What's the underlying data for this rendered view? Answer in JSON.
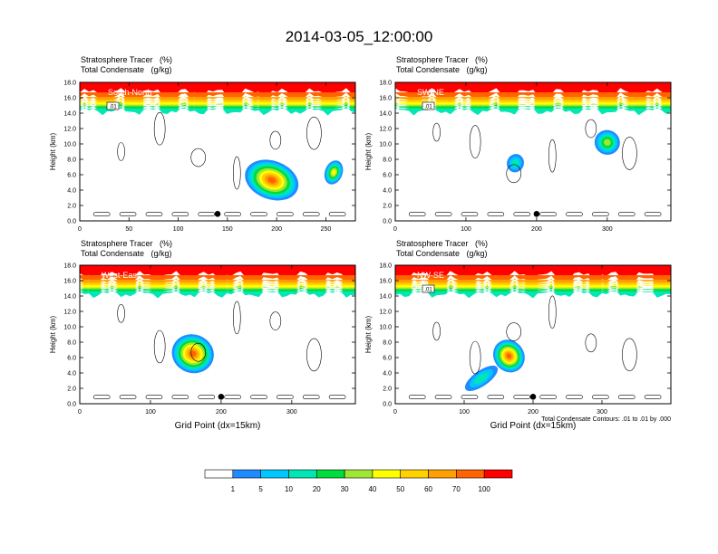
{
  "title": "2014-03-05_12:00:00",
  "header": {
    "line1": "Stratosphere Tracer   (%)",
    "line2": "Total Condensate   (g/kg)"
  },
  "ylabel": "Height (km)",
  "xlabel": "Grid Point (dx=15km)",
  "contour_note": "Total Condensate Contours: .01 to .01 by .000",
  "colors": [
    "#ffffff",
    "#1e8cff",
    "#00c8ff",
    "#00e6b4",
    "#00dc3c",
    "#a0e632",
    "#ffff00",
    "#ffd200",
    "#ffa000",
    "#ff6400",
    "#ff0000"
  ],
  "colorbar_labels": [
    "1",
    "5",
    "10",
    "20",
    "30",
    "40",
    "50",
    "60",
    "70",
    "100"
  ],
  "chart_data": [
    {
      "type": "heatmap",
      "panel": "South-North",
      "x_ticks": [
        "0",
        "50",
        "100",
        "150",
        "200",
        "250"
      ],
      "xlim": [
        0,
        280
      ],
      "y_ticks": [
        "0.0",
        "2.0",
        "4.0",
        "6.0",
        "8.0",
        "10.0",
        "12.0",
        "14.0",
        "16.0",
        "18.0"
      ],
      "ylim": [
        0,
        18
      ],
      "contour_label": ".01",
      "blobs": [
        {
          "x": 195,
          "y": 5.3,
          "rx": 28,
          "ry": 2.5,
          "v": 70
        },
        {
          "x": 258,
          "y": 6.3,
          "rx": 9,
          "ry": 1.6,
          "v": 40
        }
      ],
      "marker_x": 140
    },
    {
      "type": "heatmap",
      "panel": "SW-NE",
      "x_ticks": [
        "0",
        "100",
        "200",
        "300"
      ],
      "xlim": [
        0,
        390
      ],
      "y_ticks": [
        "0.0",
        "2.0",
        "4.0",
        "6.0",
        "8.0",
        "10.0",
        "12.0",
        "14.0",
        "16.0",
        "18.0"
      ],
      "ylim": [
        0,
        18
      ],
      "contour_label": ".01",
      "blobs": [
        {
          "x": 300,
          "y": 10.2,
          "rx": 18,
          "ry": 1.6,
          "v": 30
        },
        {
          "x": 170,
          "y": 7.5,
          "rx": 12,
          "ry": 1.2,
          "v": 10
        }
      ],
      "marker_x": 200
    },
    {
      "type": "heatmap",
      "panel": "West-East",
      "x_ticks": [
        "0",
        "100",
        "200",
        "300"
      ],
      "xlim": [
        0,
        390
      ],
      "y_ticks": [
        "0.0",
        "2.0",
        "4.0",
        "6.0",
        "8.0",
        "10.0",
        "12.0",
        "14.0",
        "16.0",
        "18.0"
      ],
      "ylim": [
        0,
        18
      ],
      "contour_label": "",
      "blobs": [
        {
          "x": 160,
          "y": 6.5,
          "rx": 30,
          "ry": 2.5,
          "v": 70
        }
      ],
      "marker_x": 200
    },
    {
      "type": "heatmap",
      "panel": "NW-SE",
      "x_ticks": [
        "0",
        "100",
        "200",
        "300"
      ],
      "xlim": [
        0,
        400
      ],
      "y_ticks": [
        "0.0",
        "2.0",
        "4.0",
        "6.0",
        "8.0",
        "10.0",
        "12.0",
        "14.0",
        "16.0",
        "18.0"
      ],
      "ylim": [
        0,
        18
      ],
      "contour_label": ".01",
      "blobs": [
        {
          "x": 165,
          "y": 6.2,
          "rx": 22,
          "ry": 2.2,
          "v": 70
        },
        {
          "x": 125,
          "y": 3.3,
          "rx": 28,
          "ry": 1.0,
          "v": 10
        }
      ],
      "marker_x": 200
    }
  ]
}
